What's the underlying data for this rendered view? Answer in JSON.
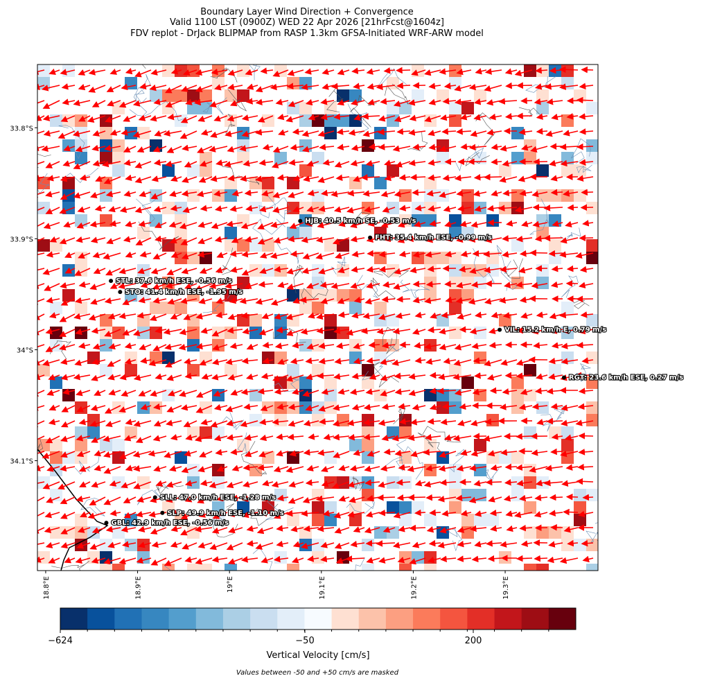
{
  "title": [
    "Boundary Layer Wind Direction + Convergence",
    "Valid 1100 LST (0900Z) WED 22 Apr 2026 [21hrFcst@1604z]",
    "FDV replot - DrJack BLIPMAP from RASP 1.3km GFSA-Initiated WRF-ARW model"
  ],
  "map": {
    "lon_range": [
      18.791,
      19.401
    ],
    "lat_range": [
      -34.199,
      -33.743
    ],
    "lat_ticks": [
      {
        "value": -33.8,
        "label": "33.8°S"
      },
      {
        "value": -33.9,
        "label": "33.9°S"
      },
      {
        "value": -34.0,
        "label": "34°S"
      },
      {
        "value": -34.1,
        "label": "34.1°S"
      }
    ],
    "lon_ticks": [
      {
        "value": 18.8,
        "label": "18.8°E"
      },
      {
        "value": 18.9,
        "label": "18.9°E"
      },
      {
        "value": 19.0,
        "label": "19°E"
      },
      {
        "value": 19.1,
        "label": "19.1°E"
      },
      {
        "value": 19.2,
        "label": "19.2°E"
      },
      {
        "value": 19.3,
        "label": "19.3°E"
      }
    ],
    "arrow_color": "#ff0000",
    "stations": [
      {
        "lon": 19.077,
        "lat": -33.884,
        "label": "HJB: 40.5 km/h SE, -0.53 m/s"
      },
      {
        "lon": 19.153,
        "lat": -33.899,
        "label": "FHT: 35.4 km/h ESE, -0.99 m/s"
      },
      {
        "lon": 18.871,
        "lat": -33.938,
        "label": "STL: 37.6 km/h ESE, -0.56 m/s"
      },
      {
        "lon": 18.881,
        "lat": -33.948,
        "label": "STO: 41.4 km/h ESE, -1.95 m/s"
      },
      {
        "lon": 19.294,
        "lat": -33.982,
        "label": "VIL: 15.2 km/h E, 0.79 m/s"
      },
      {
        "lon": 19.364,
        "lat": -34.025,
        "label": "RGT: 23.6 km/h ESE, 0.27 m/s"
      },
      {
        "lon": 18.919,
        "lat": -34.133,
        "label": "SLL: 47.0 km/h ESE, -1.28 m/s"
      },
      {
        "lon": 18.927,
        "lat": -34.147,
        "label": "SLP: 49.9 km/h ESE, -1.10 m/s"
      },
      {
        "lon": 18.866,
        "lat": -34.156,
        "label": "GBL: 42.9 km/h ESE, -0.56 m/s"
      }
    ]
  },
  "colorbar": {
    "colors": [
      "#08306b",
      "#08519c",
      "#2171b5",
      "#3787c0",
      "#539ecd",
      "#82badb",
      "#abcfe5",
      "#cadef0",
      "#e3eef9",
      "#f7fbff",
      "#fee0d2",
      "#fcc2aa",
      "#fc9f81",
      "#fb7b5b",
      "#f4553f",
      "#e32f27",
      "#c2161b",
      "#9e0d14",
      "#67000d"
    ],
    "tick_labels": [
      "−624",
      "−50",
      "200"
    ],
    "label": "Vertical Velocity [cm/s]",
    "note": "Values between -50 and +50 cm/s are masked"
  }
}
